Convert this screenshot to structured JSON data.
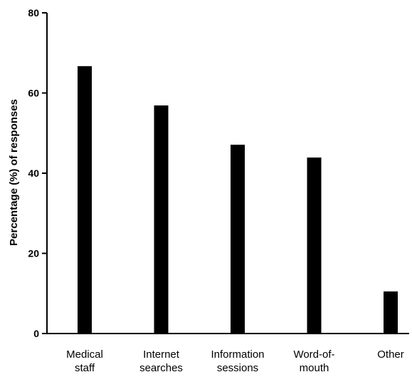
{
  "chart_data": {
    "type": "bar",
    "categories": [
      [
        "Medical",
        "staff"
      ],
      [
        "Internet",
        "searches"
      ],
      [
        "Information",
        "sessions"
      ],
      [
        "Word-of-",
        "mouth"
      ],
      [
        "Other"
      ]
    ],
    "values": [
      66.7,
      56.9,
      47.1,
      43.9,
      10.5
    ],
    "title": "",
    "xlabel": "",
    "ylabel": "Percentage (%) of responses",
    "ylim": [
      0,
      80
    ],
    "yticks": [
      "0",
      "20",
      "40",
      "60",
      "80"
    ],
    "grid": false,
    "bar_color": "#000000"
  }
}
